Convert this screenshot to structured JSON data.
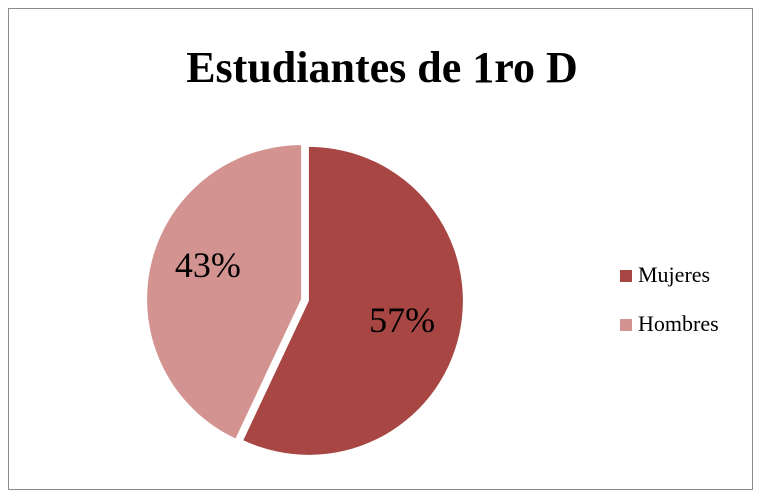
{
  "chart_data": {
    "type": "pie",
    "title": "Estudiantes de 1ro D",
    "categories": [
      "Mujeres",
      "Hombres"
    ],
    "values": [
      57,
      43
    ],
    "value_labels": [
      "57%",
      "43%"
    ],
    "colors": [
      "#a84644",
      "#d39391"
    ],
    "legend": "right"
  }
}
